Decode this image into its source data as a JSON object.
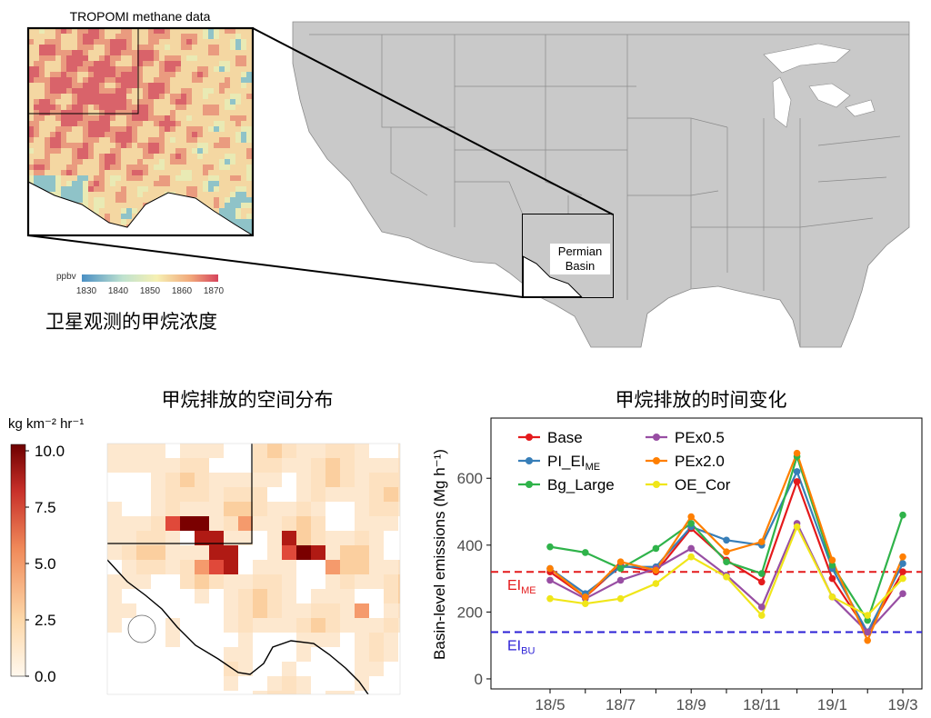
{
  "map_panel": {
    "inset_title": "TROPOMI methane data",
    "colorbar_unit": "ppbv",
    "colorbar_ticks": [
      "1830",
      "1840",
      "1850",
      "1860",
      "1870"
    ],
    "caption_cn": "卫星观测的甲烷浓度",
    "region_label_line1": "Permian",
    "region_label_line2": "Basin",
    "colors": {
      "land": "#c9c9c9",
      "inset_high": "#d9636a",
      "inset_mid": "#f4d7a2",
      "inset_low": "#8fc3c8"
    }
  },
  "spatial_panel": {
    "title_cn": "甲烷排放的空间分布",
    "colorbar_unit": "kg km⁻² hr⁻¹",
    "colorbar_ticks": [
      "10.0",
      "7.5",
      "5.0",
      "2.5",
      "0.0"
    ],
    "colors": {
      "max": "#7a0000",
      "min": "#fff5e8"
    }
  },
  "chart_data": {
    "type": "line",
    "title": "甲烷排放的时间变化",
    "ylabel": "Basin-level emissions (Mg h⁻¹)",
    "xlabel": "",
    "x": [
      "18/5",
      "18/6",
      "18/7",
      "18/8",
      "18/9",
      "18/10",
      "18/11",
      "18/12",
      "19/1",
      "19/2",
      "19/3"
    ],
    "xtick_labels": [
      "18/5",
      "18/7",
      "18/9",
      "18/11",
      "19/1",
      "19/3"
    ],
    "ylim": [
      -30,
      780
    ],
    "yticks": [
      0,
      200,
      400,
      600
    ],
    "grid": false,
    "legend_position": "top-left",
    "series": [
      {
        "name": "Base",
        "color": "#e41a1c",
        "values": [
          320,
          245,
          340,
          320,
          450,
          355,
          290,
          590,
          300,
          140,
          320
        ]
      },
      {
        "name": "PI_EI",
        "name_sub": "ME",
        "color": "#377eb8",
        "values": [
          330,
          255,
          335,
          335,
          455,
          415,
          400,
          620,
          330,
          140,
          345
        ]
      },
      {
        "name": "Bg_Large",
        "color": "#2fb34a",
        "values": [
          395,
          378,
          330,
          390,
          465,
          350,
          315,
          665,
          340,
          175,
          490
        ]
      },
      {
        "name": "PEx0.5",
        "color": "#984ea3",
        "values": [
          295,
          240,
          295,
          330,
          390,
          310,
          215,
          465,
          245,
          140,
          255
        ]
      },
      {
        "name": "PEx2.0",
        "color": "#ff7f00",
        "values": [
          330,
          245,
          350,
          325,
          485,
          380,
          410,
          675,
          355,
          115,
          365
        ]
      },
      {
        "name": "OE_Cor",
        "color": "#f0e619",
        "values": [
          240,
          225,
          240,
          285,
          365,
          305,
          190,
          455,
          245,
          190,
          300
        ]
      }
    ],
    "reference_lines": [
      {
        "label": "EI",
        "label_sub": "ME",
        "value": 320,
        "color": "#e41a1c"
      },
      {
        "label": "EI",
        "label_sub": "BU",
        "value": 140,
        "color": "#2b1fd6"
      }
    ]
  }
}
